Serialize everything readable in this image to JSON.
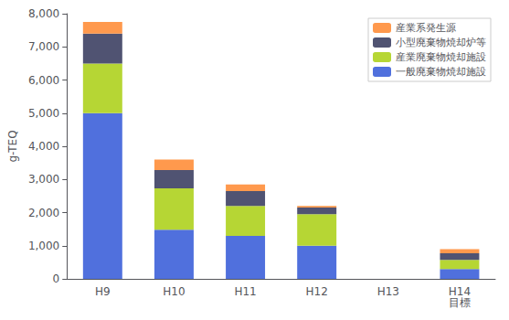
{
  "chart_data": {
    "type": "bar",
    "stacked": true,
    "categories": [
      "H9",
      "H10",
      "H11",
      "H12",
      "H13",
      "H14\n目標"
    ],
    "series": [
      {
        "name": "一般廃棄物焼却施設",
        "values": [
          5000,
          1480,
          1300,
          1000,
          0,
          300
        ]
      },
      {
        "name": "産業廃棄物焼却施設",
        "values": [
          1500,
          1250,
          900,
          950,
          0,
          270
        ]
      },
      {
        "name": "小型廃棄物焼却炉等",
        "values": [
          900,
          550,
          450,
          200,
          0,
          200
        ]
      },
      {
        "name": "産業系発生源",
        "values": [
          350,
          320,
          200,
          50,
          0,
          130
        ]
      }
    ],
    "ylabel": "g-TEQ",
    "ylim": [
      0,
      8000
    ],
    "yticks": [
      0,
      1000,
      2000,
      3000,
      4000,
      5000,
      6000,
      7000,
      8000
    ],
    "legend": "upper right",
    "grid": false
  }
}
